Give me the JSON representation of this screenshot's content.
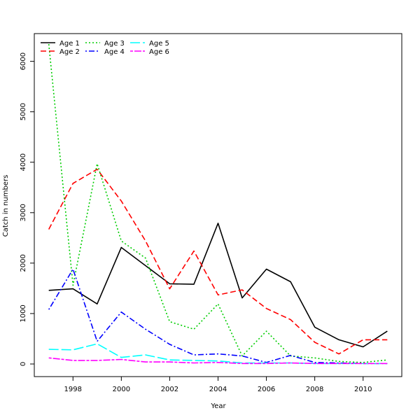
{
  "chart_data": {
    "type": "line",
    "xlabel": "Year",
    "ylabel": "Catch in numbers",
    "xlim": [
      1996.4,
      2011.6
    ],
    "ylim": [
      -250,
      6550
    ],
    "x_ticks": [
      1998,
      2000,
      2002,
      2004,
      2006,
      2008,
      2010
    ],
    "y_ticks": [
      0,
      1000,
      2000,
      3000,
      4000,
      5000,
      6000
    ],
    "grid": false,
    "legend_position": "top-left",
    "x": [
      1997,
      1998,
      1999,
      2000,
      2001,
      2002,
      2003,
      2004,
      2005,
      2006,
      2007,
      2008,
      2009,
      2010,
      2011
    ],
    "series": [
      {
        "name": "Age 1",
        "color": "#000000",
        "dash": "solid",
        "values": [
          1460,
          1490,
          1190,
          2310,
          1950,
          1590,
          1580,
          2790,
          1310,
          1880,
          1630,
          730,
          480,
          340,
          650
        ]
      },
      {
        "name": "Age 2",
        "color": "#ff0000",
        "dash": "dashed",
        "values": [
          2670,
          3580,
          3860,
          3230,
          2440,
          1490,
          2240,
          1370,
          1470,
          1100,
          880,
          430,
          200,
          480,
          480
        ]
      },
      {
        "name": "Age 3",
        "color": "#00cd00",
        "dash": "dotted",
        "values": [
          6340,
          1560,
          3970,
          2440,
          2100,
          840,
          690,
          1190,
          160,
          650,
          160,
          120,
          50,
          30,
          80
        ]
      },
      {
        "name": "Age 4",
        "color": "#0000ff",
        "dash": "dotdash",
        "values": [
          1080,
          1880,
          450,
          1030,
          690,
          390,
          180,
          200,
          160,
          30,
          170,
          30,
          20,
          10,
          10
        ]
      },
      {
        "name": "Age 5",
        "color": "#00ffff",
        "dash": "longdash",
        "values": [
          290,
          280,
          400,
          130,
          180,
          80,
          70,
          60,
          20,
          20,
          20,
          10,
          10,
          10,
          10
        ]
      },
      {
        "name": "Age 6",
        "color": "#ff00ff",
        "dash": "twodash",
        "values": [
          120,
          70,
          70,
          90,
          40,
          40,
          20,
          30,
          10,
          10,
          20,
          10,
          10,
          10,
          10
        ]
      }
    ]
  }
}
